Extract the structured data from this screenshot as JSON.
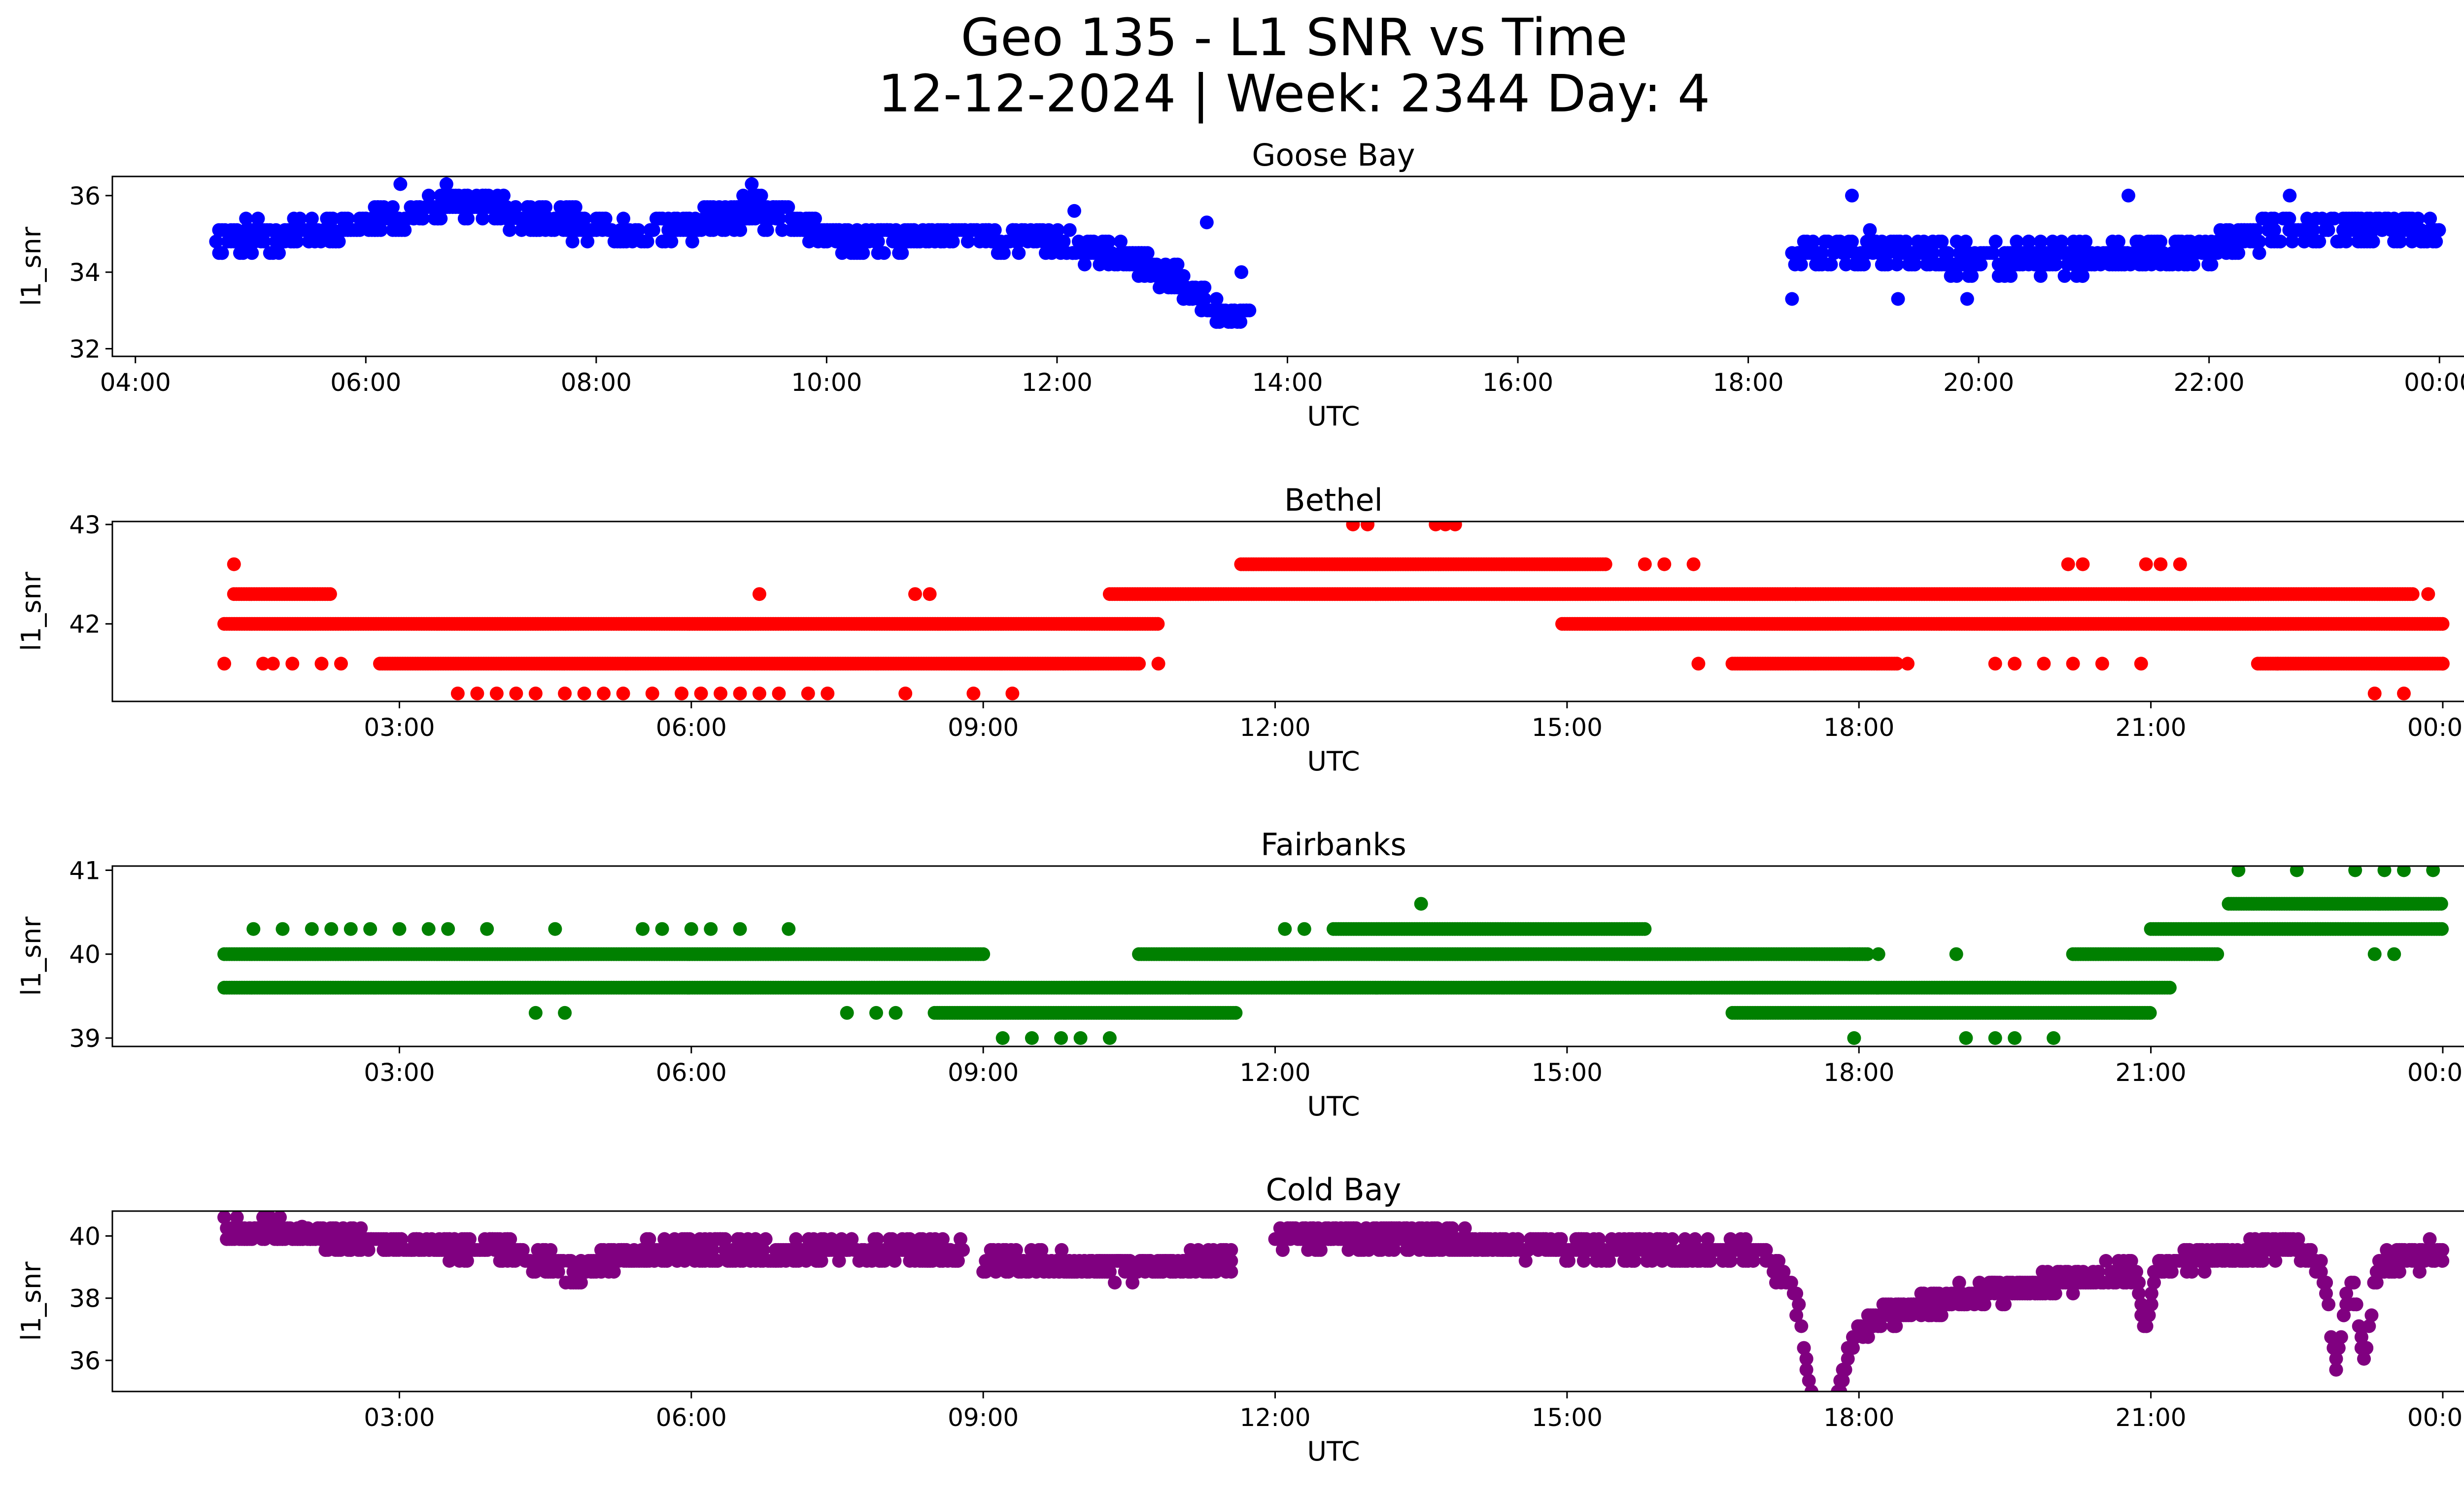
{
  "figure": {
    "title_line1": "Geo 135 - L1 SNR vs Time",
    "title_line2": "12-12-2024 | Week: 2344 Day: 4"
  },
  "chart_data": [
    {
      "type": "scatter",
      "title": "Goose Bay",
      "xlabel": "UTC",
      "ylabel": "l1_snr",
      "color": "#0000ff",
      "xlim": [
        3.8,
        25.0
      ],
      "ylim": [
        31.8,
        36.5
      ],
      "x_ticks": [
        4,
        6,
        8,
        10,
        12,
        14,
        16,
        18,
        20,
        22,
        24
      ],
      "x_tick_labels": [
        "04:00",
        "06:00",
        "08:00",
        "10:00",
        "12:00",
        "14:00",
        "16:00",
        "18:00",
        "20:00",
        "22:00",
        "00:00"
      ],
      "y_ticks": [
        32,
        34,
        36
      ],
      "y_tick_labels": [
        "32",
        "34",
        "36"
      ],
      "step": 0.3,
      "segments": [
        {
          "x_start": 4.7,
          "x_end": 13.68,
          "trend_x": [
            4.7,
            5.5,
            6.2,
            6.8,
            7.5,
            8.5,
            9.4,
            10.2,
            11.0,
            12.0,
            12.7,
            13.2,
            13.45,
            13.68
          ],
          "trend_y": [
            34.9,
            35.0,
            35.4,
            35.8,
            35.4,
            35.0,
            35.6,
            34.8,
            35.0,
            34.8,
            34.3,
            33.5,
            32.8,
            32.8
          ],
          "spread": 0.35,
          "seed": 11
        },
        {
          "x_start": 18.38,
          "x_end": 24.0,
          "trend_x": [
            18.38,
            19.0,
            20.0,
            21.0,
            22.0,
            22.5,
            23.0,
            24.0
          ],
          "trend_y": [
            34.5,
            34.6,
            34.3,
            34.4,
            34.6,
            35.0,
            35.2,
            35.1
          ],
          "spread": 0.4,
          "seed": 12
        }
      ],
      "outliers": [
        [
          18.9,
          36.0
        ],
        [
          21.3,
          36.0
        ],
        [
          22.7,
          36.0
        ],
        [
          19.3,
          33.3
        ],
        [
          19.9,
          33.3
        ],
        [
          18.38,
          33.3
        ],
        [
          6.3,
          36.3
        ],
        [
          6.7,
          36.3
        ],
        [
          9.35,
          36.3
        ],
        [
          12.15,
          35.6
        ],
        [
          13.3,
          35.3
        ],
        [
          13.6,
          34.0
        ]
      ]
    },
    {
      "type": "scatter",
      "title": "Bethel",
      "xlabel": "UTC",
      "ylabel": "l1_snr",
      "color": "#ff0000",
      "xlim": [
        0.05,
        25.15
      ],
      "ylim": [
        41.22,
        43.03
      ],
      "x_ticks": [
        3,
        6,
        9,
        12,
        15,
        18,
        21,
        24
      ],
      "x_tick_labels": [
        "03:00",
        "06:00",
        "09:00",
        "12:00",
        "15:00",
        "18:00",
        "21:00",
        "00:00"
      ],
      "y_ticks": [
        42,
        43
      ],
      "y_tick_labels": [
        "42",
        "43"
      ],
      "level_step": 0.3,
      "bands": [
        {
          "y": 42.0,
          "x_start": 1.2,
          "x_end": 10.8
        },
        {
          "y": 41.6,
          "x_start": 2.8,
          "x_end": 10.6
        },
        {
          "y": 42.3,
          "x_start": 1.3,
          "x_end": 2.3
        },
        {
          "y": 42.3,
          "x_start": 10.3,
          "x_end": 23.7
        },
        {
          "y": 42.6,
          "x_start": 11.65,
          "x_end": 15.4
        },
        {
          "y": 42.0,
          "x_start": 14.95,
          "x_end": 24.0
        },
        {
          "y": 41.6,
          "x_start": 16.7,
          "x_end": 18.4
        },
        {
          "y": 41.6,
          "x_start": 22.1,
          "x_end": 24.0
        }
      ],
      "scattered": [
        {
          "y": 42.6,
          "xs": [
            1.3,
            15.8,
            16.0,
            16.3,
            20.15,
            20.3,
            20.95,
            21.1,
            21.3
          ]
        },
        {
          "y": 43.0,
          "xs": [
            12.8,
            12.95,
            13.65,
            13.75,
            13.85
          ]
        },
        {
          "y": 41.6,
          "xs": [
            1.2,
            1.6,
            1.7,
            1.9,
            2.2,
            2.4,
            10.8,
            16.35,
            18.5,
            19.4,
            19.6,
            19.9,
            20.2,
            20.5,
            20.9,
            22.3,
            24.0
          ]
        },
        {
          "y": 42.3,
          "xs": [
            6.7,
            8.3,
            8.45,
            17.35,
            23.85
          ]
        },
        {
          "y": 41.3,
          "xs": [
            3.6,
            3.8,
            4.0,
            4.2,
            4.4,
            4.7,
            4.9,
            5.1,
            5.3,
            5.6,
            5.9,
            6.1,
            6.3,
            6.5,
            6.7,
            6.9,
            7.2,
            7.4,
            8.2,
            8.9,
            9.3,
            23.3,
            23.6
          ]
        }
      ],
      "outliers": []
    },
    {
      "type": "scatter",
      "title": "Fairbanks",
      "xlabel": "UTC",
      "ylabel": "l1_snr",
      "color": "#008000",
      "xlim": [
        0.05,
        25.15
      ],
      "ylim": [
        38.9,
        41.05
      ],
      "x_ticks": [
        3,
        6,
        9,
        12,
        15,
        18,
        21,
        24
      ],
      "x_tick_labels": [
        "03:00",
        "06:00",
        "09:00",
        "12:00",
        "15:00",
        "18:00",
        "21:00",
        "00:00"
      ],
      "y_ticks": [
        39,
        40,
        41
      ],
      "y_tick_labels": [
        "39",
        "40",
        "41"
      ],
      "bands": [
        {
          "y": 40.0,
          "x_start": 1.2,
          "x_end": 9.0
        },
        {
          "y": 39.6,
          "x_start": 1.2,
          "x_end": 21.2
        },
        {
          "y": 39.3,
          "x_start": 8.5,
          "x_end": 11.6
        },
        {
          "y": 40.0,
          "x_start": 10.6,
          "x_end": 18.1
        },
        {
          "y": 40.3,
          "x_start": 12.6,
          "x_end": 15.8
        },
        {
          "y": 39.3,
          "x_start": 16.7,
          "x_end": 21.0
        },
        {
          "y": 40.0,
          "x_start": 20.2,
          "x_end": 21.7
        },
        {
          "y": 40.3,
          "x_start": 21.0,
          "x_end": 24.0
        },
        {
          "y": 40.6,
          "x_start": 21.8,
          "x_end": 24.0
        }
      ],
      "scattered": [
        {
          "y": 40.3,
          "xs": [
            1.5,
            1.8,
            2.1,
            2.3,
            2.5,
            2.7,
            3.0,
            3.3,
            3.5,
            3.9,
            4.6,
            5.5,
            5.7,
            6.0,
            6.2,
            6.5,
            7.0,
            12.1,
            12.3
          ]
        },
        {
          "y": 39.0,
          "xs": [
            9.2,
            9.5,
            9.8,
            10.0,
            10.3,
            17.95,
            19.1,
            19.4,
            19.6,
            20.0
          ]
        },
        {
          "y": 39.3,
          "xs": [
            4.4,
            4.7,
            7.6,
            7.9,
            8.1
          ]
        },
        {
          "y": 40.0,
          "xs": [
            17.9,
            18.2,
            19.0,
            23.3,
            23.5
          ]
        },
        {
          "y": 40.6,
          "xs": [
            13.5
          ]
        },
        {
          "y": 41.0,
          "xs": [
            21.9,
            22.5,
            23.1,
            23.4,
            23.6,
            23.9
          ]
        }
      ],
      "outliers": []
    },
    {
      "type": "scatter",
      "title": "Cold Bay",
      "xlabel": "UTC",
      "ylabel": "l1_snr",
      "color": "#800080",
      "xlim": [
        0.05,
        25.15
      ],
      "ylim": [
        35.0,
        40.8
      ],
      "x_ticks": [
        3,
        6,
        9,
        12,
        15,
        18,
        21,
        24
      ],
      "x_tick_labels": [
        "03:00",
        "06:00",
        "09:00",
        "12:00",
        "15:00",
        "18:00",
        "21:00",
        "00:00"
      ],
      "y_ticks": [
        36,
        38,
        40
      ],
      "y_tick_labels": [
        "36",
        "38",
        "40"
      ],
      "step": 0.35,
      "segments": [
        {
          "x_start": 1.2,
          "x_end": 8.8,
          "trend_x": [
            1.2,
            2.0,
            3.0,
            4.0,
            4.5,
            4.8,
            5.2,
            6.0,
            7.0,
            8.0,
            8.8
          ],
          "trend_y": [
            40.1,
            40.1,
            39.7,
            39.6,
            39.2,
            38.8,
            39.3,
            39.6,
            39.4,
            39.6,
            39.4
          ],
          "spread": 0.35,
          "seed": 41
        },
        {
          "x_start": 9.0,
          "x_end": 11.55,
          "trend_x": [
            9.0,
            10.0,
            11.0,
            11.55
          ],
          "trend_y": [
            39.2,
            39.0,
            39.0,
            39.3
          ],
          "spread": 0.35,
          "seed": 42
        },
        {
          "x_start": 12.0,
          "x_end": 17.6,
          "trend_x": [
            12.0,
            13.0,
            14.0,
            15.0,
            16.0,
            17.0,
            17.3,
            17.5,
            17.6
          ],
          "trend_y": [
            40.0,
            40.0,
            39.8,
            39.6,
            39.5,
            39.4,
            38.5,
            36.5,
            35.8
          ],
          "spread": 0.35,
          "seed": 43
        },
        {
          "x_start": 17.6,
          "x_end": 24.0,
          "trend_x": [
            17.6,
            17.8,
            18.3,
            19.0,
            20.0,
            20.7,
            21.3,
            22.0,
            22.5,
            23.0,
            23.5,
            24.0
          ],
          "trend_y": [
            35.6,
            36.5,
            37.5,
            38.0,
            38.5,
            38.8,
            39.2,
            39.5,
            39.7,
            38.3,
            39.2,
            39.5
          ],
          "spread": 0.35,
          "seed": 44
        }
      ],
      "dips": [
        {
          "center": 17.65,
          "depth": 4.0,
          "width": 0.15
        },
        {
          "center": 20.95,
          "depth": 1.8,
          "width": 0.08
        },
        {
          "center": 22.9,
          "depth": 2.6,
          "width": 0.08
        },
        {
          "center": 23.2,
          "depth": 2.4,
          "width": 0.08
        }
      ],
      "outliers": [
        [
          1.6,
          40.6
        ],
        [
          2.0,
          40.3
        ]
      ]
    }
  ]
}
